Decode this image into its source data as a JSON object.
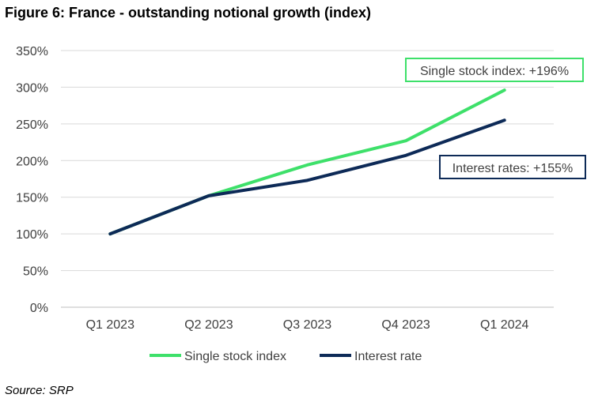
{
  "figure": {
    "title": "Figure 6: France - outstanding notional growth (index)",
    "source": "Source: SRP"
  },
  "chart_data": {
    "type": "line",
    "categories": [
      "Q1 2023",
      "Q2 2023",
      "Q3 2023",
      "Q4 2023",
      "Q1 2024"
    ],
    "ylim": [
      0,
      350
    ],
    "yticks": [
      0,
      50,
      100,
      150,
      200,
      250,
      300,
      350
    ],
    "ytick_labels": [
      "0%",
      "50%",
      "100%",
      "150%",
      "200%",
      "250%",
      "300%",
      "350%"
    ],
    "grid": true,
    "legend_position": "bottom",
    "series": [
      {
        "name": "Single stock index",
        "color": "#3ee06a",
        "values": [
          100,
          152,
          194,
          227,
          296
        ]
      },
      {
        "name": "Interest rate",
        "color": "#0d2a57",
        "values": [
          100,
          152,
          173,
          207,
          255
        ]
      }
    ],
    "annotations": [
      {
        "text": "Single stock index: +196%",
        "border_color": "#3ee06a"
      },
      {
        "text": "Interest rates: +155%",
        "border_color": "#0d2a57"
      }
    ]
  }
}
